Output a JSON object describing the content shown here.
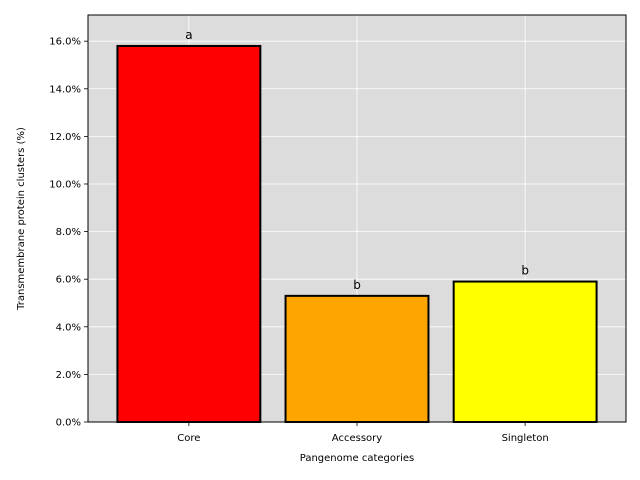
{
  "chart_data": {
    "type": "bar",
    "title": "",
    "xlabel": "Pangenome categories",
    "ylabel": "Transmembrane protein clusters (%)",
    "categories": [
      "Core",
      "Accessory",
      "Singleton"
    ],
    "values": [
      15.8,
      5.3,
      5.9
    ],
    "annotations": [
      "a",
      "b",
      "b"
    ],
    "bar_colors": [
      "#ff0000",
      "#ffa500",
      "#ffff00"
    ],
    "bar_edge_color": "#000000",
    "plot_background": "#dcdcdc",
    "grid": true,
    "grid_color": "#ffffff",
    "ylim": [
      0,
      17.1
    ],
    "yticks": [
      0,
      2,
      4,
      6,
      8,
      10,
      12,
      14,
      16
    ],
    "ytick_labels": [
      "0.0%",
      "2.0%",
      "4.0%",
      "6.0%",
      "8.0%",
      "10.0%",
      "12.0%",
      "14.0%",
      "16.0%"
    ]
  }
}
